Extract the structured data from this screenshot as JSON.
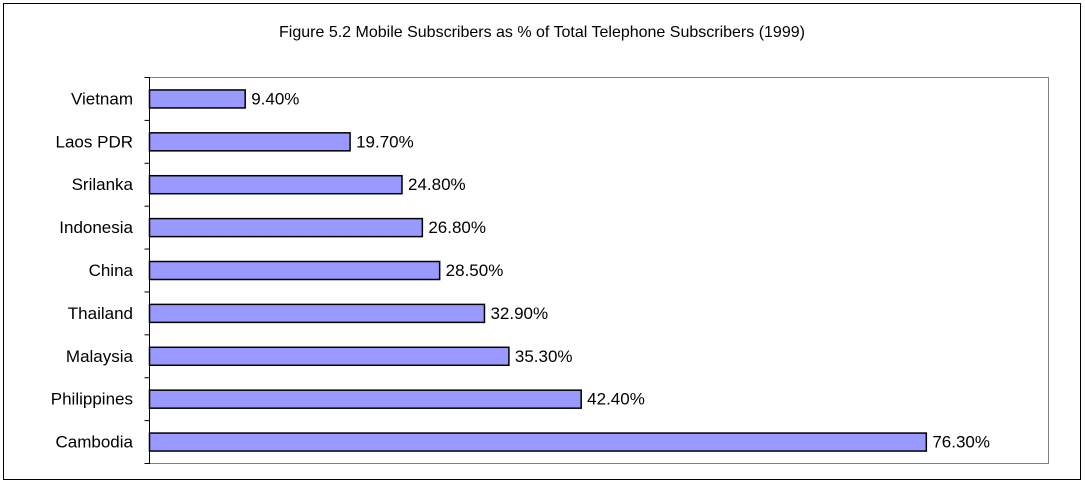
{
  "chart_data": {
    "type": "bar",
    "orientation": "horizontal",
    "title": "Figure 5.2 Mobile Subscribers as % of Total Telephone Subscribers (1999)",
    "categories": [
      "Vietnam",
      "Laos PDR",
      "Srilanka",
      "Indonesia",
      "China",
      "Thailand",
      "Malaysia",
      "Philippines",
      "Cambodia"
    ],
    "values": [
      9.4,
      19.7,
      24.8,
      26.8,
      28.5,
      32.9,
      35.3,
      42.4,
      76.3
    ],
    "value_labels": [
      "9.40%",
      "19.70%",
      "24.80%",
      "26.80%",
      "28.50%",
      "32.90%",
      "35.30%",
      "42.40%",
      "76.30%"
    ],
    "color": "#9999ff",
    "xlim": [
      0,
      88.3
    ]
  }
}
